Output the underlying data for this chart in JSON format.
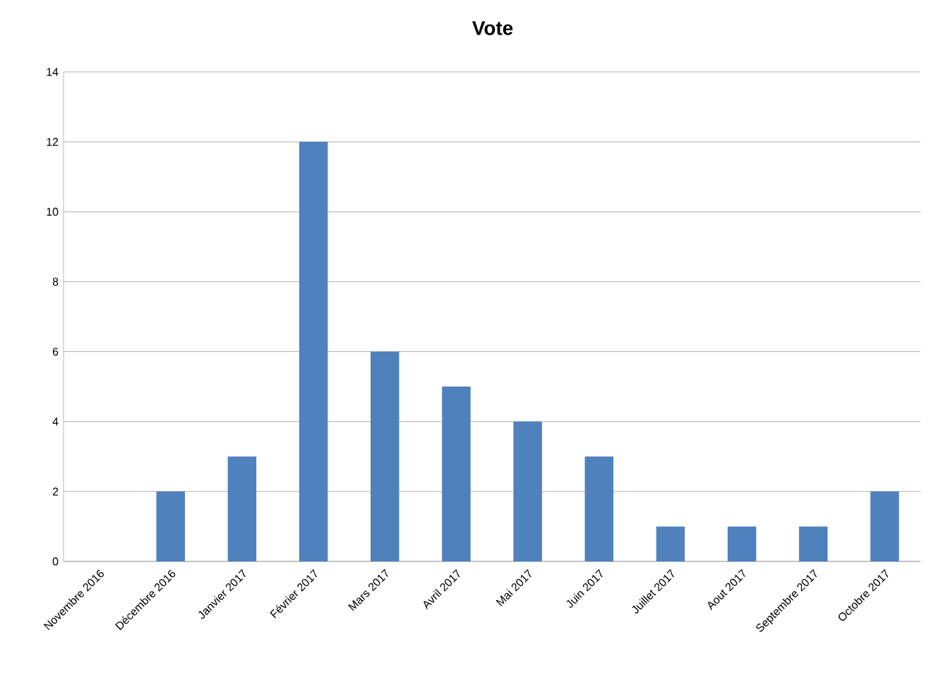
{
  "chart_data": {
    "type": "bar",
    "title": "Vote",
    "categories": [
      "Novembre 2016",
      "Décembre 2016",
      "Janvier 2017",
      "Février 2017",
      "Mars 2017",
      "Avril 2017",
      "Mai 2017",
      "Juin 2017",
      "Juillet 2017",
      "Aout 2017",
      "Septembre 2017",
      "Octobre 2017"
    ],
    "values": [
      0,
      2,
      3,
      12,
      6,
      5,
      4,
      3,
      1,
      1,
      1,
      2
    ],
    "color": "#4f81bd",
    "ylim": [
      0,
      14
    ],
    "yticks": [
      0,
      2,
      4,
      6,
      8,
      10,
      12,
      14
    ],
    "grid": "y"
  }
}
